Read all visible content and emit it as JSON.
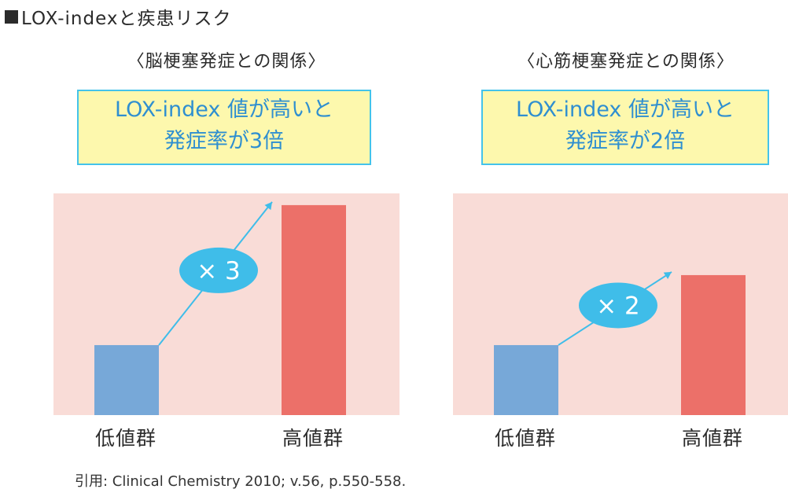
{
  "page": {
    "title": "LOX-indexと疾患リスク",
    "source": "引用: Clinical Chemistry 2010; v.56, p.550-558."
  },
  "colors": {
    "low": "#77a8d8",
    "high": "#ec7069",
    "plot_bg": "#f9dcd7",
    "callout_bg": "#fdf8ad",
    "callout_border": "#44c3ea",
    "accent": "#2f8fd0",
    "badge": "#3fbde9"
  },
  "chart_data": [
    {
      "type": "bar",
      "title": "〈脳梗塞発症との関係〉",
      "categories": [
        "低値群",
        "高値群"
      ],
      "values": [
        1,
        3
      ],
      "ylim": [
        0,
        3.1
      ],
      "grid": false,
      "annotation": {
        "text": "× 3",
        "callout_line1": "LOX-index 値が高いと",
        "callout_line2": "発症率が3倍"
      }
    },
    {
      "type": "bar",
      "title": "〈心筋梗塞発症との関係〉",
      "categories": [
        "低値群",
        "高値群"
      ],
      "values": [
        1,
        2
      ],
      "ylim": [
        0,
        3.1
      ],
      "grid": false,
      "annotation": {
        "text": "× 2",
        "callout_line1": "LOX-index 値が高いと",
        "callout_line2": "発症率が2倍"
      }
    }
  ]
}
